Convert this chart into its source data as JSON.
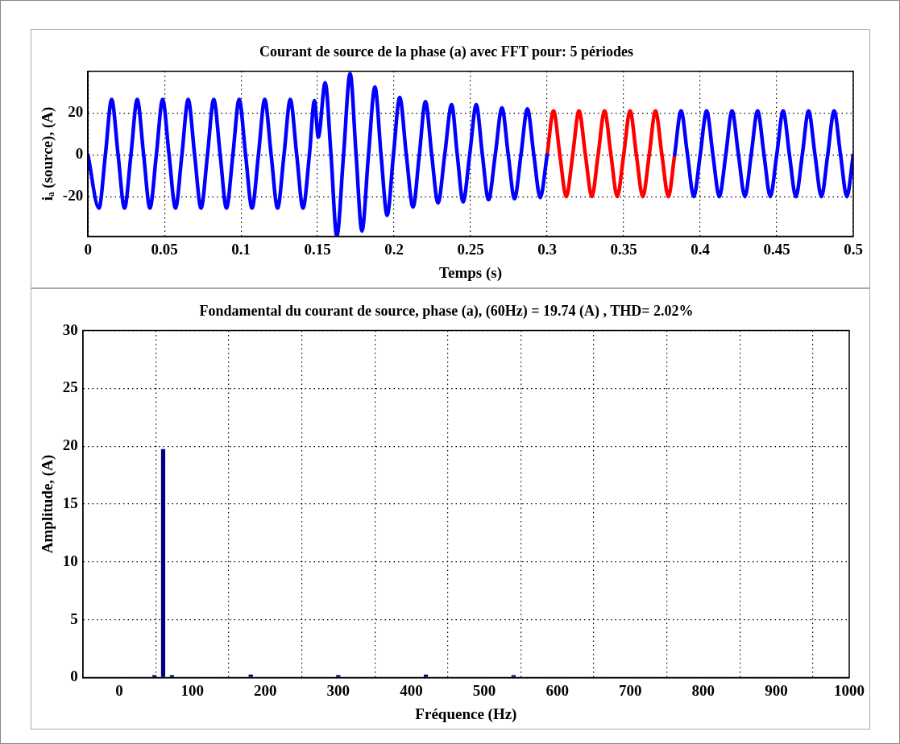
{
  "chart_data": [
    {
      "type": "line",
      "title": "Courant de source de la phase (a) avec FFT pour: 5 périodes",
      "xlabel": "Temps (s)",
      "ylabel": "iₐ (source), (A)",
      "xlim": [
        0,
        0.5
      ],
      "xticks": [
        0,
        0.05,
        0.1,
        0.15,
        0.2,
        0.25,
        0.3,
        0.35,
        0.4,
        0.45,
        0.5
      ],
      "ylim": [
        -39,
        40
      ],
      "yticks": [
        -20,
        0,
        20
      ],
      "grid": true,
      "marker": "none",
      "series": [
        {
          "color": "#0000ff",
          "x": [
            0,
            0.0072,
            0.0114,
            0.0155,
            0.0197,
            0.0239,
            0.0281,
            0.0322,
            0.0364,
            0.0405,
            0.0447,
            0.0488,
            0.053,
            0.0572,
            0.0614,
            0.0655,
            0.0697,
            0.0739,
            0.0781,
            0.0822,
            0.0864,
            0.0905,
            0.0947,
            0.0988,
            0.103,
            0.1072,
            0.1114,
            0.1155,
            0.1197,
            0.1239,
            0.1281,
            0.1322,
            0.1364,
            0.1405,
            0.1447,
            0.148,
            0.1505,
            0.155,
            0.1588,
            0.1626,
            0.167,
            0.1713,
            0.1752,
            0.179,
            0.1833,
            0.1875,
            0.1915,
            0.1955,
            0.1996,
            0.2037,
            0.208,
            0.2124,
            0.2165,
            0.2205,
            0.2246,
            0.2287,
            0.2331,
            0.2376,
            0.2413,
            0.2451,
            0.2494,
            0.2537,
            0.2577,
            0.2617,
            0.2661,
            0.2705,
            0.2746,
            0.2787,
            0.2829,
            0.2871,
            0.2913,
            0.2955,
            0.3,
            0.34,
            0.3833,
            0.3875,
            0.3917,
            0.3958,
            0.4,
            0.4042,
            0.4083,
            0.4125,
            0.4167,
            0.4208,
            0.425,
            0.4292,
            0.4333,
            0.4375,
            0.4417,
            0.4458,
            0.45,
            0.4542,
            0.4583,
            0.4625,
            0.4667,
            0.4708,
            0.475,
            0.4792,
            0.4833,
            0.4875,
            0.4917,
            0.4958,
            0.5
          ],
          "values": [
            0,
            -25.5,
            0,
            26.5,
            0,
            -25.5,
            0,
            26.5,
            0,
            -25.5,
            0,
            26.5,
            0,
            -25.5,
            0,
            26.5,
            0,
            -25.5,
            0,
            26.5,
            0,
            -25.5,
            0,
            26.5,
            0,
            -25.5,
            0,
            26.5,
            0,
            -25.5,
            0,
            26.5,
            0,
            -25.5,
            0,
            26,
            8.5,
            34.5,
            0,
            -39,
            0,
            39,
            0,
            -36.5,
            0,
            32.5,
            0,
            -29,
            0,
            27.5,
            0,
            -25,
            0,
            25.5,
            0,
            -23,
            0,
            24,
            0,
            -22.5,
            0,
            24,
            0,
            -21.5,
            0,
            22.5,
            0,
            -21,
            0,
            22,
            0,
            -20.5,
            0,
            null,
            0,
            21,
            0,
            -20,
            0,
            21,
            0,
            -20,
            0,
            21,
            0,
            -20,
            0,
            21,
            0,
            -20,
            0,
            21,
            0,
            -20,
            0,
            21,
            0,
            -20,
            0,
            21,
            0,
            -20,
            0
          ]
        },
        {
          "color": "#ff0000",
          "x": [
            0.3,
            0.3042,
            0.3083,
            0.3125,
            0.3167,
            0.3208,
            0.325,
            0.3292,
            0.3333,
            0.3375,
            0.3417,
            0.3458,
            0.35,
            0.3542,
            0.3583,
            0.3625,
            0.3667,
            0.3708,
            0.375,
            0.3792,
            0.3833
          ],
          "values": [
            0,
            21,
            0,
            -20,
            0,
            21,
            0,
            -20,
            0,
            21,
            0,
            -20,
            0,
            21,
            0,
            -20,
            0,
            21,
            0,
            -20,
            0
          ]
        }
      ]
    },
    {
      "type": "bar",
      "title": "Fondamental du courant de source, phase (a), (60Hz) = 19.74 (A) , THD= 2.02%",
      "xlabel": "Fréquence (Hz)",
      "ylabel": "Amplitude, (A)",
      "xlim": [
        -50,
        1000
      ],
      "xticks": [
        0,
        100,
        200,
        300,
        400,
        500,
        600,
        700,
        800,
        900,
        1000
      ],
      "ylim": [
        0,
        30
      ],
      "yticks": [
        0,
        5,
        10,
        15,
        20,
        25,
        30
      ],
      "grid": true,
      "x": [
        48,
        60,
        72,
        180,
        300,
        420,
        540
      ],
      "values": [
        0.2,
        19.74,
        0.2,
        0.25,
        0.2,
        0.25,
        0.2
      ],
      "color": "#000080"
    }
  ]
}
